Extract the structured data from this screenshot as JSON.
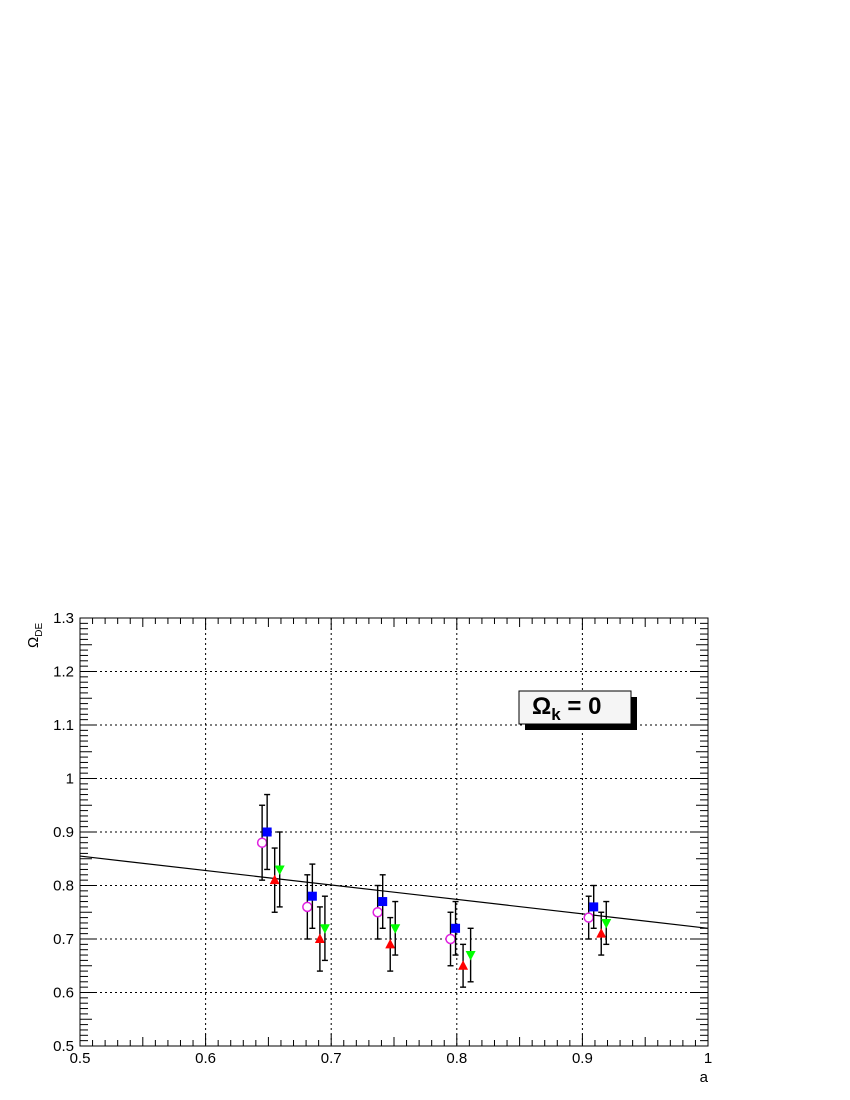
{
  "chart_data": {
    "type": "scatter",
    "xlabel": "a",
    "ylabel": {
      "main": "Ω",
      "sub": "DE"
    },
    "xlim": [
      0.5,
      1.0
    ],
    "ylim": [
      0.5,
      1.3
    ],
    "x_ticks": [
      "0.5",
      "0.6",
      "0.7",
      "0.8",
      "0.9",
      "1"
    ],
    "y_ticks": [
      "0.5",
      "0.6",
      "0.7",
      "0.8",
      "0.9",
      "1",
      "1.1",
      "1.2",
      "1.3"
    ],
    "grid": true,
    "annotation": {
      "main": "Ω",
      "sub": "k",
      "rest": " = 0"
    },
    "line": {
      "x": [
        0.5,
        1.0
      ],
      "y": [
        0.855,
        0.72
      ],
      "color": "#000000"
    },
    "series": [
      {
        "marker": "open-circle",
        "color": "#e020e0",
        "points": [
          {
            "x": 0.645,
            "y": 0.88,
            "err": 0.07
          },
          {
            "x": 0.681,
            "y": 0.76,
            "err": 0.06
          },
          {
            "x": 0.737,
            "y": 0.75,
            "err": 0.05
          },
          {
            "x": 0.795,
            "y": 0.7,
            "err": 0.05
          },
          {
            "x": 0.905,
            "y": 0.74,
            "err": 0.04
          }
        ]
      },
      {
        "marker": "square",
        "color": "#0000ff",
        "points": [
          {
            "x": 0.649,
            "y": 0.9,
            "err": 0.07
          },
          {
            "x": 0.685,
            "y": 0.78,
            "err": 0.06
          },
          {
            "x": 0.741,
            "y": 0.77,
            "err": 0.05
          },
          {
            "x": 0.799,
            "y": 0.72,
            "err": 0.05
          },
          {
            "x": 0.909,
            "y": 0.76,
            "err": 0.04
          }
        ]
      },
      {
        "marker": "triangle-up",
        "color": "#ff0000",
        "points": [
          {
            "x": 0.655,
            "y": 0.81,
            "err": 0.06
          },
          {
            "x": 0.691,
            "y": 0.7,
            "err": 0.06
          },
          {
            "x": 0.747,
            "y": 0.69,
            "err": 0.05
          },
          {
            "x": 0.805,
            "y": 0.65,
            "err": 0.04
          },
          {
            "x": 0.915,
            "y": 0.71,
            "err": 0.04
          }
        ]
      },
      {
        "marker": "triangle-down",
        "color": "#00ff00",
        "points": [
          {
            "x": 0.659,
            "y": 0.83,
            "err": 0.07
          },
          {
            "x": 0.695,
            "y": 0.72,
            "err": 0.06
          },
          {
            "x": 0.751,
            "y": 0.72,
            "err": 0.05
          },
          {
            "x": 0.811,
            "y": 0.67,
            "err": 0.05
          },
          {
            "x": 0.919,
            "y": 0.73,
            "err": 0.04
          }
        ]
      }
    ]
  }
}
